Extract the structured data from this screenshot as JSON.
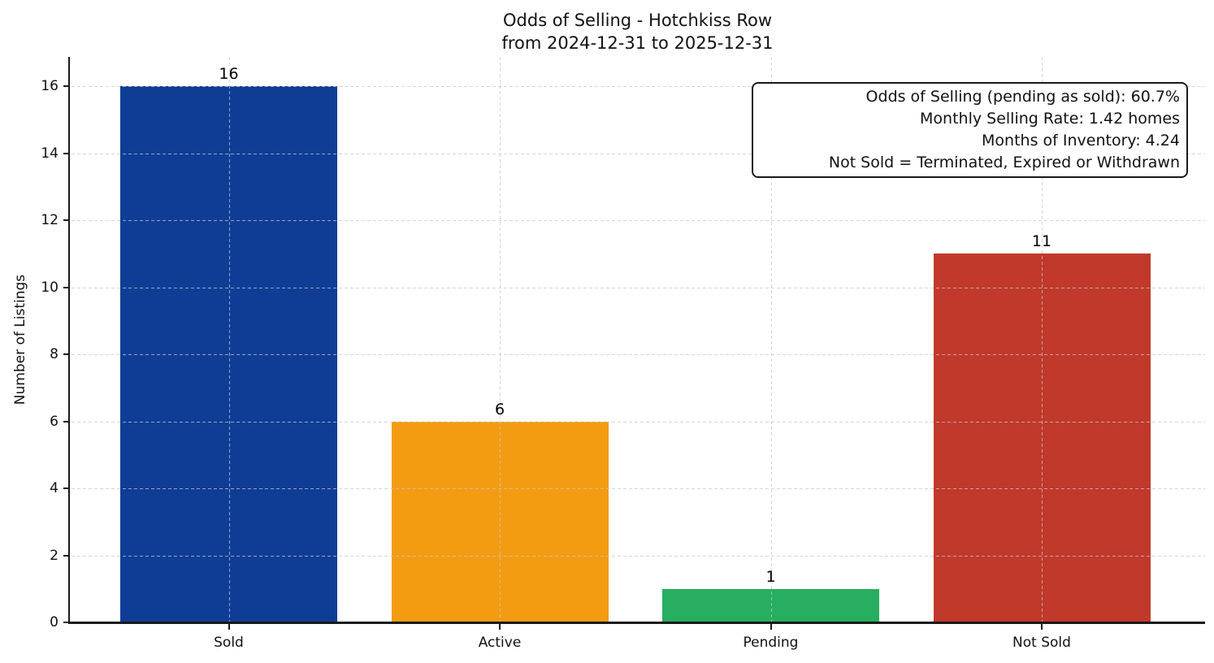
{
  "chart_data": {
    "type": "bar",
    "title_lines": [
      "Odds of Selling - Hotchkiss Row",
      "from 2024-12-31 to 2025-12-31"
    ],
    "categories": [
      "Sold",
      "Active",
      "Pending",
      "Not Sold"
    ],
    "values": [
      16,
      6,
      1,
      11
    ],
    "bar_colors": [
      "#0f3d96",
      "#f39c12",
      "#27ae60",
      "#c0392b"
    ],
    "ylabel": "Number of Listings",
    "xlabel": "",
    "yticks": [
      0,
      2,
      4,
      6,
      8,
      10,
      12,
      14,
      16
    ],
    "ylim": [
      0,
      16.9
    ],
    "grid": "dashed light-gray gridlines on both axes",
    "legend": "none",
    "value_labels_shown": true,
    "annotations": [
      "Odds of Selling (pending as sold): 60.7%",
      "Monthly Selling Rate: 1.42 homes",
      "Months of Inventory: 4.24",
      "Not Sold = Terminated, Expired or Withdrawn"
    ]
  },
  "colors": {
    "background": "#ffffff",
    "text": "#111111",
    "axis": "#1a1a1a",
    "grid": "#c8c8c8"
  }
}
